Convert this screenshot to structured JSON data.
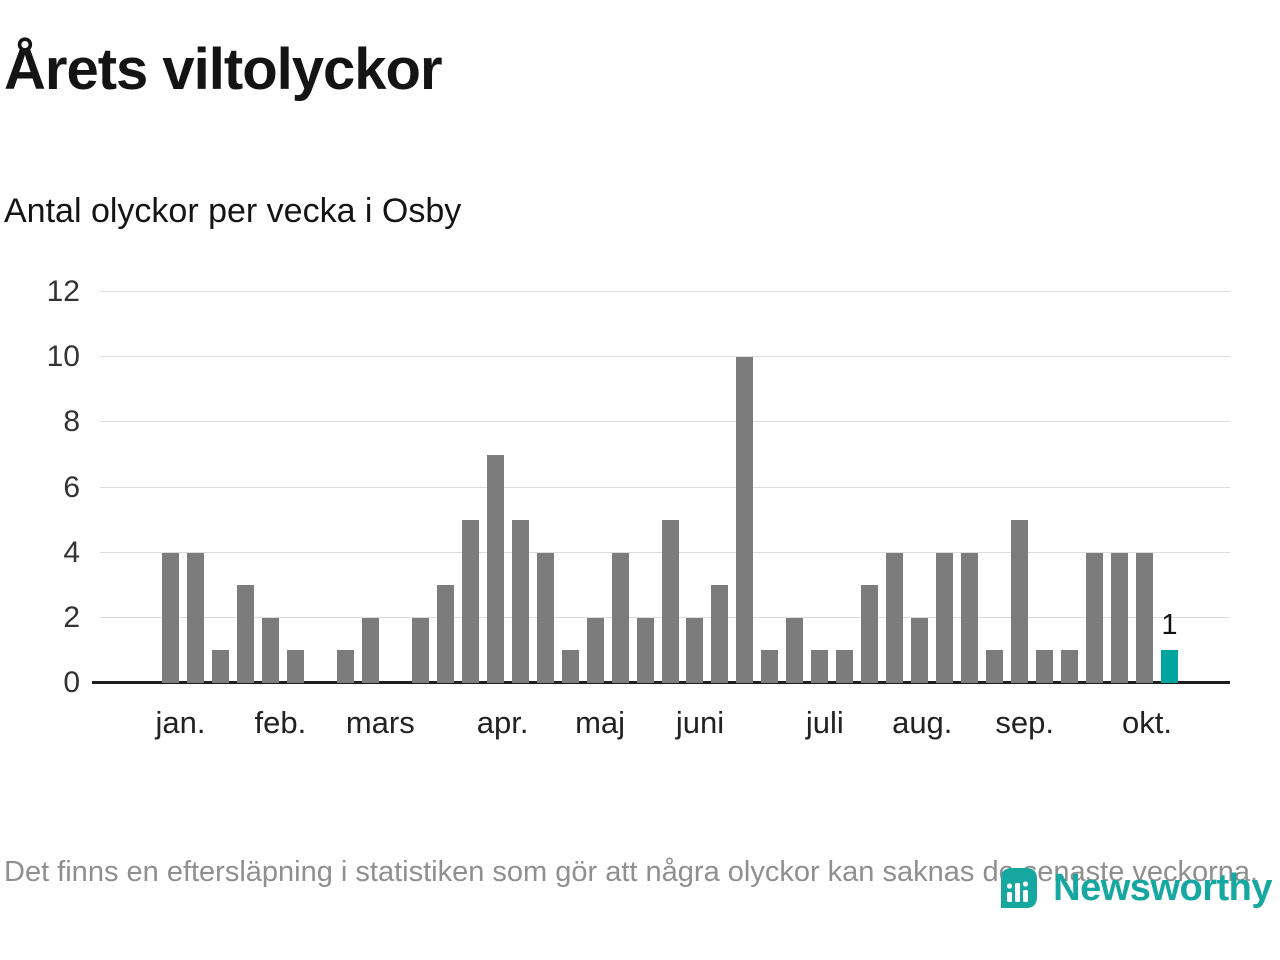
{
  "header": {
    "title": "Årets viltolyckor",
    "subtitle": "Antal olyckor per vecka i Osby"
  },
  "chart_data": {
    "type": "bar",
    "title": "Årets viltolyckor",
    "subtitle": "Antal olyckor per vecka i Osby",
    "x_unit": "vecka",
    "values": [
      4,
      4,
      1,
      3,
      2,
      1,
      0,
      1,
      2,
      0,
      2,
      3,
      5,
      7,
      5,
      4,
      1,
      2,
      4,
      2,
      5,
      2,
      3,
      10,
      1,
      2,
      1,
      1,
      3,
      4,
      2,
      4,
      4,
      1,
      5,
      1,
      1,
      4,
      4,
      4,
      1
    ],
    "highlight_last": true,
    "last_value_label": "1",
    "bar_color": "#7c7c7c",
    "highlight_color": "#00a49e",
    "yticks": [
      0,
      2,
      4,
      6,
      8,
      10,
      12
    ],
    "ylim": [
      0,
      12
    ],
    "grid": true,
    "legend": "none",
    "months": [
      {
        "label": "jan.",
        "week": 0.4
      },
      {
        "label": "feb.",
        "week": 4.4
      },
      {
        "label": "mars",
        "week": 8.4
      },
      {
        "label": "apr.",
        "week": 13.3
      },
      {
        "label": "maj",
        "week": 17.2
      },
      {
        "label": "juni",
        "week": 21.2
      },
      {
        "label": "juli",
        "week": 26.2
      },
      {
        "label": "aug.",
        "week": 30.1
      },
      {
        "label": "sep.",
        "week": 34.2
      },
      {
        "label": "okt.",
        "week": 39.1
      }
    ]
  },
  "footer": {
    "note": "Det finns en eftersläpning i statistiken som gör att några olyckor kan saknas de senaste veckorna."
  },
  "brand": {
    "name": "Newsworthy",
    "color": "#17a7a1"
  }
}
